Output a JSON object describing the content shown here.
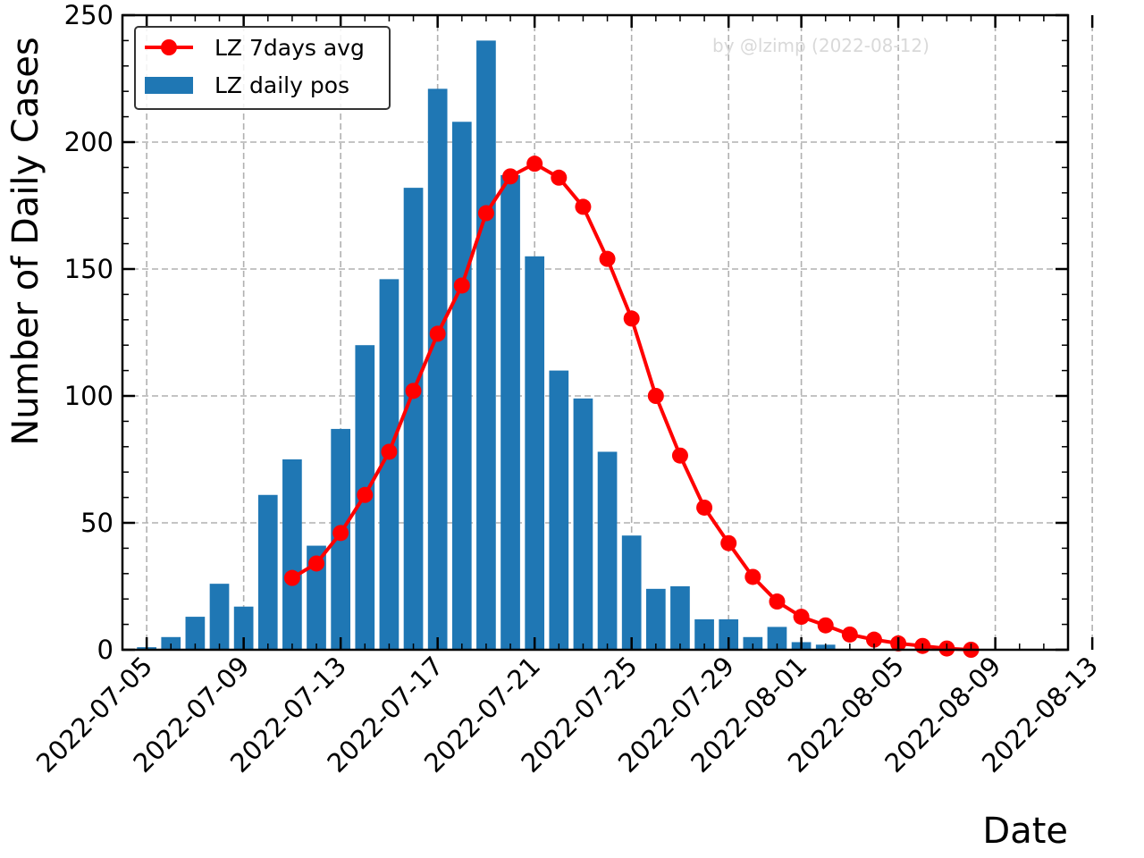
{
  "chart_data": {
    "type": "bar",
    "xlabel": "Date",
    "ylabel": "Number of Daily Cases",
    "ylim": [
      0,
      250
    ],
    "yticks": [
      0,
      50,
      100,
      150,
      200,
      250
    ],
    "xlim": [
      "2022-07-04",
      "2022-08-12"
    ],
    "xticks": [
      "2022-07-05",
      "2022-07-09",
      "2022-07-13",
      "2022-07-17",
      "2022-07-21",
      "2022-07-25",
      "2022-07-29",
      "2022-08-01",
      "2022-08-05",
      "2022-08-09",
      "2022-08-13"
    ],
    "grid": true,
    "legend_position": "top-left",
    "watermark": "by @lzimp (2022-08-12)",
    "series": [
      {
        "name": "LZ daily pos",
        "type": "bar",
        "color": "#1f77b4",
        "x": [
          "2022-07-05",
          "2022-07-06",
          "2022-07-07",
          "2022-07-08",
          "2022-07-09",
          "2022-07-10",
          "2022-07-11",
          "2022-07-12",
          "2022-07-13",
          "2022-07-14",
          "2022-07-15",
          "2022-07-16",
          "2022-07-17",
          "2022-07-18",
          "2022-07-19",
          "2022-07-20",
          "2022-07-21",
          "2022-07-22",
          "2022-07-23",
          "2022-07-24",
          "2022-07-25",
          "2022-07-26",
          "2022-07-27",
          "2022-07-28",
          "2022-07-29",
          "2022-07-30",
          "2022-07-31",
          "2022-08-01",
          "2022-08-02"
        ],
        "values": [
          1,
          5,
          13,
          26,
          17,
          61,
          75,
          41,
          87,
          120,
          146,
          182,
          221,
          208,
          240,
          187,
          155,
          110,
          99,
          78,
          45,
          24,
          25,
          12,
          12,
          5,
          9,
          3,
          2
        ]
      },
      {
        "name": "LZ 7days avg",
        "type": "line",
        "color": "#ff0000",
        "x": [
          "2022-07-11",
          "2022-07-12",
          "2022-07-13",
          "2022-07-14",
          "2022-07-15",
          "2022-07-16",
          "2022-07-17",
          "2022-07-18",
          "2022-07-19",
          "2022-07-20",
          "2022-07-21",
          "2022-07-22",
          "2022-07-23",
          "2022-07-24",
          "2022-07-25",
          "2022-07-26",
          "2022-07-27",
          "2022-07-28",
          "2022-07-29",
          "2022-07-30",
          "2022-07-31",
          "2022-08-01",
          "2022-08-02",
          "2022-08-03",
          "2022-08-04",
          "2022-08-05",
          "2022-08-06",
          "2022-08-07",
          "2022-08-08"
        ],
        "values": [
          28.3,
          34.0,
          46.0,
          61.0,
          78.0,
          102.0,
          124.5,
          143.5,
          172.0,
          186.5,
          191.5,
          186.0,
          174.5,
          154.0,
          130.5,
          100.0,
          76.5,
          56.0,
          42.0,
          28.7,
          19.0,
          13.0,
          9.6,
          6.0,
          4.0,
          2.5,
          1.5,
          0.5,
          0.0
        ]
      }
    ]
  }
}
